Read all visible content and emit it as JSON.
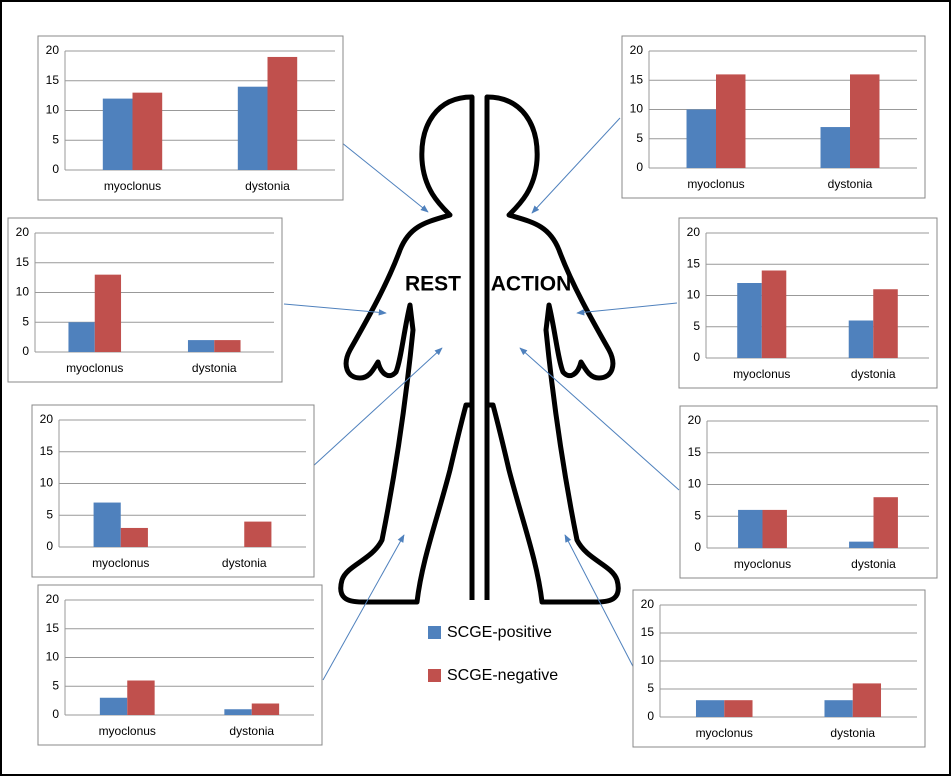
{
  "chart_data": [
    {
      "type": "bar",
      "categories": [
        "myoclonus",
        "dystonia"
      ],
      "series": [
        {
          "name": "SCGE-positive",
          "color": "#4f81bd",
          "values": [
            12,
            14
          ]
        },
        {
          "name": "SCGE-negative",
          "color": "#c0504d",
          "values": [
            13,
            19
          ]
        }
      ],
      "ylim": [
        0,
        20
      ],
      "yticks": [
        0,
        5,
        10,
        15,
        20
      ],
      "grid": true
    },
    {
      "type": "bar",
      "categories": [
        "myoclonus",
        "dystonia"
      ],
      "series": [
        {
          "name": "SCGE-positive",
          "color": "#4f81bd",
          "values": [
            5,
            2
          ]
        },
        {
          "name": "SCGE-negative",
          "color": "#c0504d",
          "values": [
            13,
            2
          ]
        }
      ],
      "ylim": [
        0,
        20
      ],
      "yticks": [
        0,
        5,
        10,
        15,
        20
      ],
      "grid": true
    },
    {
      "type": "bar",
      "categories": [
        "myoclonus",
        "dystonia"
      ],
      "series": [
        {
          "name": "SCGE-positive",
          "color": "#4f81bd",
          "values": [
            7,
            0
          ]
        },
        {
          "name": "SCGE-negative",
          "color": "#c0504d",
          "values": [
            3,
            4
          ]
        }
      ],
      "ylim": [
        0,
        20
      ],
      "yticks": [
        0,
        5,
        10,
        15,
        20
      ],
      "grid": true
    },
    {
      "type": "bar",
      "categories": [
        "myoclonus",
        "dystonia"
      ],
      "series": [
        {
          "name": "SCGE-positive",
          "color": "#4f81bd",
          "values": [
            3,
            1
          ]
        },
        {
          "name": "SCGE-negative",
          "color": "#c0504d",
          "values": [
            6,
            2
          ]
        }
      ],
      "ylim": [
        0,
        20
      ],
      "yticks": [
        0,
        5,
        10,
        15,
        20
      ],
      "grid": true
    },
    {
      "type": "bar",
      "categories": [
        "myoclonus",
        "dystonia"
      ],
      "series": [
        {
          "name": "SCGE-positive",
          "color": "#4f81bd",
          "values": [
            10,
            7
          ]
        },
        {
          "name": "SCGE-negative",
          "color": "#c0504d",
          "values": [
            16,
            16
          ]
        }
      ],
      "ylim": [
        0,
        20
      ],
      "yticks": [
        0,
        5,
        10,
        15,
        20
      ],
      "grid": true
    },
    {
      "type": "bar",
      "categories": [
        "myoclonus",
        "dystonia"
      ],
      "series": [
        {
          "name": "SCGE-positive",
          "color": "#4f81bd",
          "values": [
            12,
            6
          ]
        },
        {
          "name": "SCGE-negative",
          "color": "#c0504d",
          "values": [
            14,
            11
          ]
        }
      ],
      "ylim": [
        0,
        20
      ],
      "yticks": [
        0,
        5,
        10,
        15,
        20
      ],
      "grid": true
    },
    {
      "type": "bar",
      "categories": [
        "myoclonus",
        "dystonia"
      ],
      "series": [
        {
          "name": "SCGE-positive",
          "color": "#4f81bd",
          "values": [
            6,
            1
          ]
        },
        {
          "name": "SCGE-negative",
          "color": "#c0504d",
          "values": [
            6,
            8
          ]
        }
      ],
      "ylim": [
        0,
        20
      ],
      "yticks": [
        0,
        5,
        10,
        15,
        20
      ],
      "grid": true
    },
    {
      "type": "bar",
      "categories": [
        "myoclonus",
        "dystonia"
      ],
      "series": [
        {
          "name": "SCGE-positive",
          "color": "#4f81bd",
          "values": [
            3,
            3
          ]
        },
        {
          "name": "SCGE-negative",
          "color": "#c0504d",
          "values": [
            3,
            6
          ]
        }
      ],
      "ylim": [
        0,
        20
      ],
      "yticks": [
        0,
        5,
        10,
        15,
        20
      ],
      "grid": true
    }
  ],
  "figure": {
    "left_label": "REST",
    "right_label": "ACTION"
  }
}
